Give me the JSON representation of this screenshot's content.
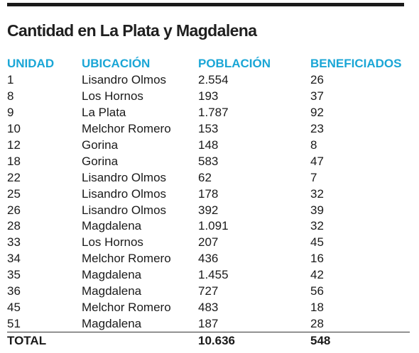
{
  "title": "Cantidad en La Plata y Magdalena",
  "table": {
    "headers": [
      "UNIDAD",
      "UBICACIÓN",
      "POBLACIÓN",
      "BENEFICIADOS"
    ],
    "rows": [
      [
        "1",
        "Lisandro Olmos",
        "2.554",
        "26"
      ],
      [
        "8",
        "Los Hornos",
        "193",
        "37"
      ],
      [
        "9",
        "La Plata",
        "1.787",
        "92"
      ],
      [
        "10",
        "Melchor Romero",
        "153",
        "23"
      ],
      [
        "12",
        "Gorina",
        "148",
        "8"
      ],
      [
        "18",
        "Gorina",
        "583",
        "47"
      ],
      [
        "22",
        "Lisandro Olmos",
        "62",
        "7"
      ],
      [
        "25",
        "Lisandro Olmos",
        "178",
        "32"
      ],
      [
        "26",
        "Lisandro Olmos",
        "392",
        "39"
      ],
      [
        "28",
        "Magdalena",
        "1.091",
        "32"
      ],
      [
        "33",
        "Los Hornos",
        "207",
        "45"
      ],
      [
        "34",
        "Melchor Romero",
        "436",
        "16"
      ],
      [
        "35",
        "Magdalena",
        "1.455",
        "42"
      ],
      [
        "36",
        "Magdalena",
        "727",
        "56"
      ],
      [
        "45",
        "Melchor Romero",
        "483",
        "18"
      ],
      [
        "51",
        "Magdalena",
        "187",
        "28"
      ]
    ],
    "total": {
      "label": "TOTAL",
      "poblacion": "10.636",
      "beneficiados": "548"
    }
  },
  "colors": {
    "header": "#1aa6d6",
    "text": "#1a1a1a",
    "rule": "#1a1a1a"
  }
}
